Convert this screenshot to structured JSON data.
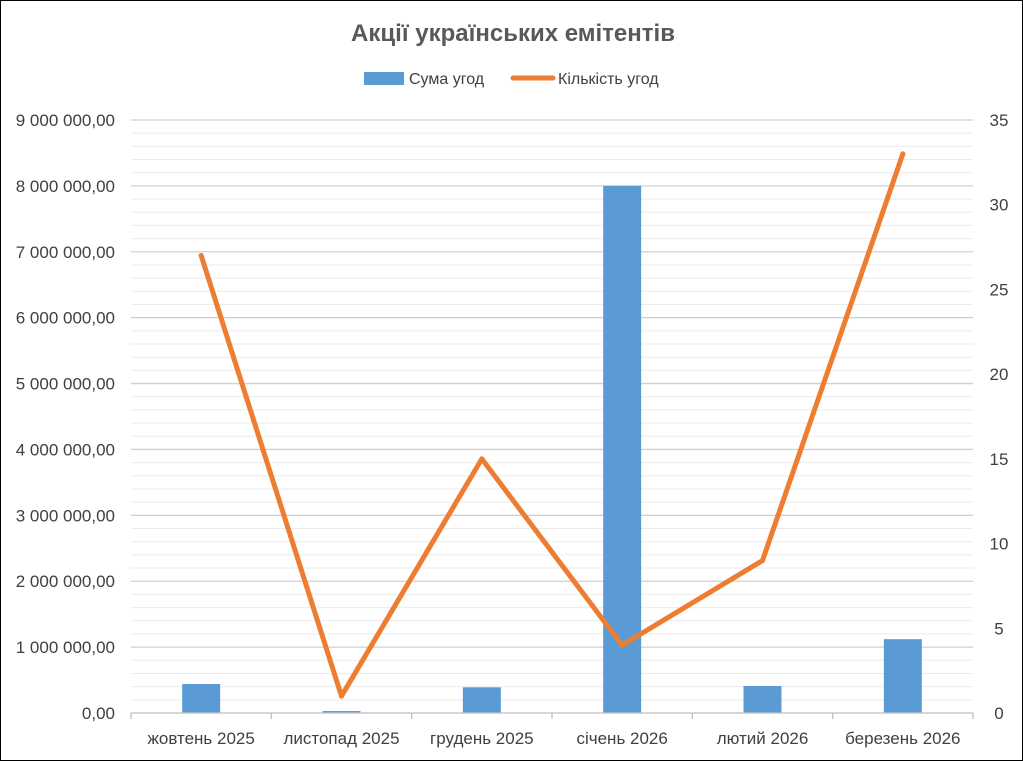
{
  "chart_data": {
    "type": "bar",
    "title": "Акції українських емітентів",
    "categories": [
      "жовтень 2025",
      "листопад 2025",
      "грудень 2025",
      "січень 2026",
      "лютий 2026",
      "березень 2026"
    ],
    "series": [
      {
        "name": "Сума угод",
        "type": "bar",
        "axis": "left",
        "color": "#5B9BD5",
        "values": [
          440000,
          30000,
          390000,
          8000000,
          410000,
          1120000
        ]
      },
      {
        "name": "Кількість угод",
        "type": "line",
        "axis": "right",
        "color": "#ED7D31",
        "values": [
          27,
          1,
          15,
          4,
          9,
          33
        ]
      }
    ],
    "y_left": {
      "min": 0,
      "max": 9000000,
      "major": 1000000,
      "minor": 200000,
      "tick_labels": [
        "0,00",
        "1 000 000,00",
        "2 000 000,00",
        "3 000 000,00",
        "4 000 000,00",
        "5 000 000,00",
        "6 000 000,00",
        "7 000 000,00",
        "8 000 000,00",
        "9 000 000,00"
      ]
    },
    "y_right": {
      "min": 0,
      "max": 35,
      "major": 5,
      "tick_labels": [
        "0",
        "5",
        "10",
        "15",
        "20",
        "25",
        "30",
        "35"
      ]
    },
    "grid": true,
    "legend_position": "top"
  }
}
